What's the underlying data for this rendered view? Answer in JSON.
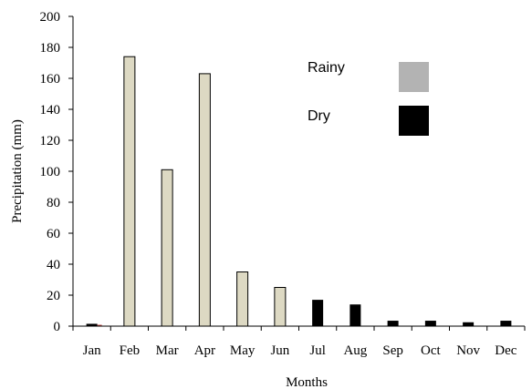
{
  "chart_data": {
    "type": "bar",
    "categories": [
      "Jan",
      "Feb",
      "Mar",
      "Apr",
      "May",
      "Jun",
      "Jul",
      "Aug",
      "Sep",
      "Oct",
      "Nov",
      "Dec"
    ],
    "series": [
      {
        "name": "Rainy",
        "values": [
          null,
          174,
          101,
          163,
          35,
          25,
          null,
          null,
          null,
          null,
          null,
          null
        ],
        "color": "#ddd9c3",
        "legend_swatch_color": "#b3b3b3"
      },
      {
        "name": "Dry",
        "values": [
          1.5,
          null,
          null,
          null,
          null,
          null,
          17,
          14,
          3.5,
          3.5,
          2.5,
          3.5
        ],
        "color": "#000000"
      }
    ],
    "jan_accent_color": "#c0504d",
    "title": "",
    "xlabel": "Months",
    "ylabel": "Precipitation (mm)",
    "ylim": [
      0,
      200
    ],
    "yticks": [
      "0",
      "20",
      "40",
      "60",
      "80",
      "100",
      "120",
      "140",
      "160",
      "180",
      "200"
    ],
    "grid": false,
    "legend_position": "top-right"
  }
}
